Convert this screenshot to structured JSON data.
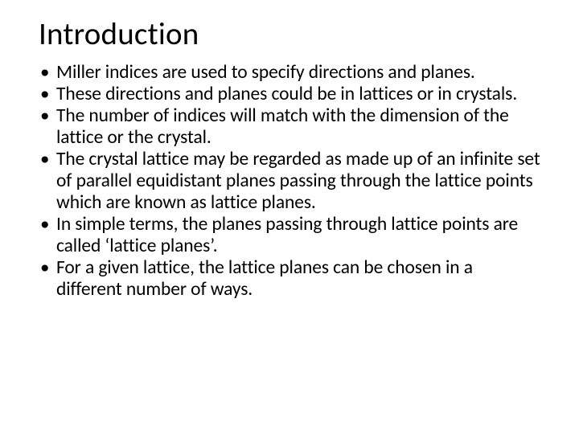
{
  "slide": {
    "title": "Introduction",
    "title_fontsize": 39,
    "title_color": "#000000",
    "body_fontsize": 23.5,
    "body_color": "#000000",
    "background_color": "#ffffff",
    "bullets": [
      "Miller indices are used to specify directions and planes.",
      "These directions and planes could be in lattices or in crystals.",
      "The number of indices will match with the dimension of the lattice or the crystal.",
      " The crystal lattice may be regarded as made  up of an infinite set of parallel equidistant  planes passing through the lattice points  which are known as lattice planes.",
      " In simple terms, the planes passing through lattice points are called ‘lattice planes’.",
      " For a given lattice, the lattice planes can be  chosen in a different number of ways."
    ]
  }
}
